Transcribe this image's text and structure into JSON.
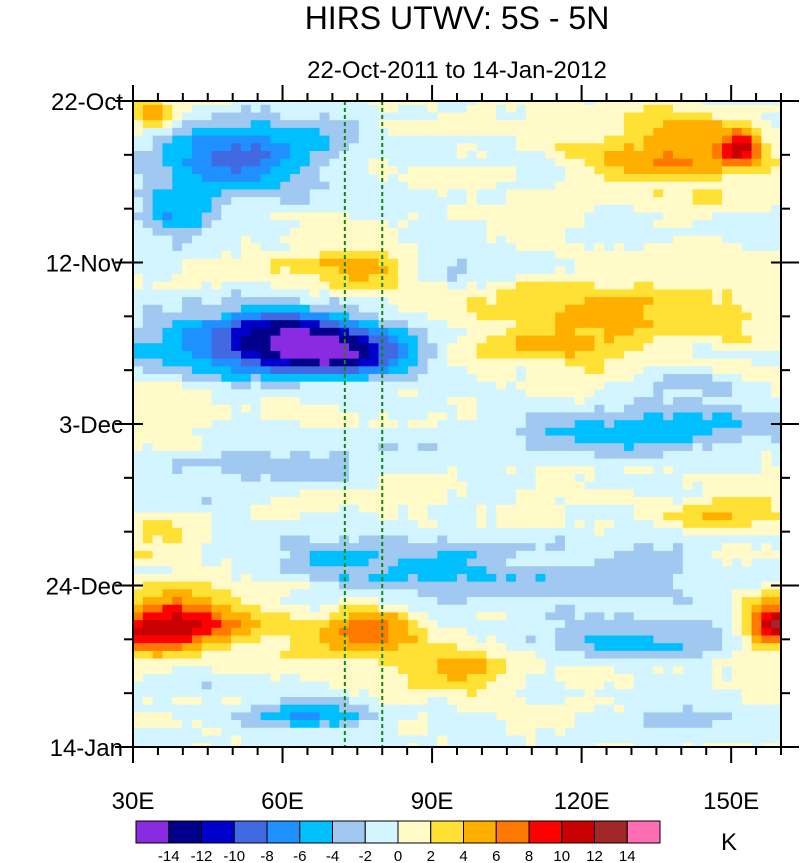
{
  "chart_data": {
    "type": "heatmap",
    "title": "HIRS UTWV: 5S - 5N",
    "subtitle": "22-Oct-2011 to 14-Jan-2012",
    "x_axis": {
      "range": [
        30,
        160
      ],
      "ticks": [
        30,
        60,
        90,
        120,
        150
      ],
      "tick_labels": [
        "30E",
        "60E",
        "90E",
        "120E",
        "150E"
      ]
    },
    "y_axis": {
      "range_days": [
        0,
        84
      ],
      "ticks_days": [
        0,
        21,
        42,
        63,
        84
      ],
      "tick_labels": [
        "22-Oct",
        "12-Nov",
        "3-Dec",
        "24-Dec",
        "14-Jan"
      ],
      "minor_step_days": 7
    },
    "reference_lines_lon": [
      72.5,
      80
    ],
    "colorbar": {
      "levels": [
        -14,
        -12,
        -10,
        -8,
        -6,
        -4,
        -2,
        0,
        2,
        4,
        6,
        8,
        10,
        12,
        14
      ],
      "labels": [
        "-14",
        "-12",
        "-10",
        "-8",
        "-6",
        "-4",
        "-2",
        "0",
        "2",
        "4",
        "6",
        "8",
        "10",
        "12",
        "14"
      ],
      "colors": [
        "#8a2be2",
        "#00008b",
        "#0000cd",
        "#4169e1",
        "#1e90ff",
        "#00bfff",
        "#a0c8f0",
        "#d2f5ff",
        "#fffac8",
        "#ffe135",
        "#ffaf00",
        "#ff7800",
        "#ff0000",
        "#c80000",
        "#a02828",
        "#ff6eb4"
      ],
      "units": "K"
    },
    "anomaly_features": [
      {
        "lon": 34,
        "day": 2,
        "value": 6,
        "width_deg": 4,
        "height_days": 2
      },
      {
        "lon": 45,
        "day": 8,
        "value": -7,
        "width_deg": 14,
        "height_days": 4
      },
      {
        "lon": 60,
        "day": 6,
        "value": -5,
        "width_deg": 16,
        "height_days": 5
      },
      {
        "lon": 38,
        "day": 15,
        "value": -6,
        "width_deg": 8,
        "height_days": 3
      },
      {
        "lon": 138,
        "day": 7,
        "value": 6,
        "width_deg": 18,
        "height_days": 5
      },
      {
        "lon": 152,
        "day": 6,
        "value": 9,
        "width_deg": 4,
        "height_days": 2
      },
      {
        "lon": 75,
        "day": 22,
        "value": 6,
        "width_deg": 12,
        "height_days": 3
      },
      {
        "lon": 93,
        "day": 22,
        "value": -3,
        "width_deg": 12,
        "height_days": 3
      },
      {
        "lon": 125,
        "day": 27,
        "value": 5,
        "width_deg": 28,
        "height_days": 4
      },
      {
        "lon": 50,
        "day": 32,
        "value": -9,
        "width_deg": 20,
        "height_days": 4
      },
      {
        "lon": 72,
        "day": 33,
        "value": -11,
        "width_deg": 16,
        "height_days": 3
      },
      {
        "lon": 62,
        "day": 29,
        "value": -7,
        "width_deg": 14,
        "height_days": 3
      },
      {
        "lon": 112,
        "day": 32,
        "value": 5,
        "width_deg": 14,
        "height_days": 2
      },
      {
        "lon": 128,
        "day": 43,
        "value": -5,
        "width_deg": 22,
        "height_days": 3
      },
      {
        "lon": 145,
        "day": 40,
        "value": -3,
        "width_deg": 14,
        "height_days": 5
      },
      {
        "lon": 60,
        "day": 47,
        "value": -3,
        "width_deg": 18,
        "height_days": 3
      },
      {
        "lon": 36,
        "day": 56,
        "value": 4,
        "width_deg": 8,
        "height_days": 2
      },
      {
        "lon": 80,
        "day": 60,
        "value": -5,
        "width_deg": 22,
        "height_days": 4
      },
      {
        "lon": 118,
        "day": 62,
        "value": -4,
        "width_deg": 22,
        "height_days": 3
      },
      {
        "lon": 148,
        "day": 54,
        "value": 4,
        "width_deg": 10,
        "height_days": 2
      },
      {
        "lon": 36,
        "day": 69,
        "value": 9,
        "width_deg": 12,
        "height_days": 3
      },
      {
        "lon": 42,
        "day": 66,
        "value": 5,
        "width_deg": 16,
        "height_days": 4
      },
      {
        "lon": 77,
        "day": 69,
        "value": 7,
        "width_deg": 12,
        "height_days": 3
      },
      {
        "lon": 95,
        "day": 74,
        "value": 5,
        "width_deg": 12,
        "height_days": 3
      },
      {
        "lon": 128,
        "day": 70,
        "value": -5,
        "width_deg": 18,
        "height_days": 3
      },
      {
        "lon": 158,
        "day": 68,
        "value": 12,
        "width_deg": 5,
        "height_days": 3
      },
      {
        "lon": 65,
        "day": 80,
        "value": -5,
        "width_deg": 14,
        "height_days": 2
      },
      {
        "lon": 140,
        "day": 80,
        "value": -2,
        "width_deg": 16,
        "height_days": 3
      }
    ]
  }
}
